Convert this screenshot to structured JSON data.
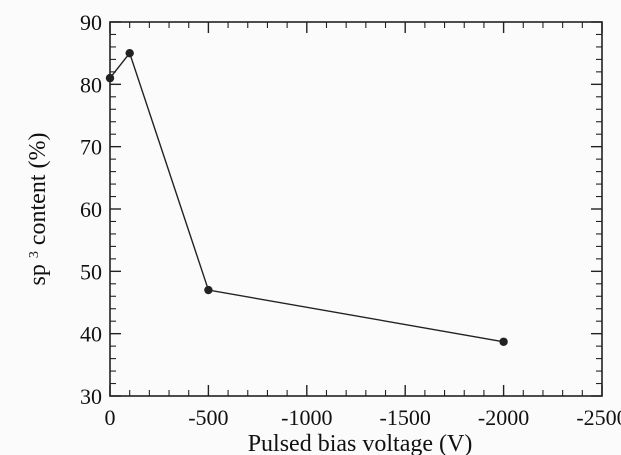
{
  "chart_data": {
    "type": "line",
    "title": "",
    "xlabel": "Pulsed bias voltage (V)",
    "ylabel_prefix": "sp",
    "ylabel_superscript": "3",
    "ylabel_suffix": " content (%)",
    "xlim": [
      0,
      -2500
    ],
    "ylim": [
      30,
      90
    ],
    "x_ticks": [
      0,
      -500,
      -1000,
      -1500,
      -2000,
      -2500
    ],
    "x_tick_labels": [
      "0",
      "-500",
      "-1000",
      "-1500",
      "-2000",
      "-2500"
    ],
    "y_ticks": [
      30,
      40,
      50,
      60,
      70,
      80,
      90
    ],
    "y_tick_labels": [
      "30",
      "40",
      "50",
      "60",
      "70",
      "80",
      "90"
    ],
    "grid": false,
    "series": [
      {
        "x": [
          0,
          -100,
          -500,
          -2000
        ],
        "y": [
          81,
          85,
          47,
          38.7
        ]
      }
    ],
    "line_color": "#222222",
    "marker_color": "#222222"
  }
}
